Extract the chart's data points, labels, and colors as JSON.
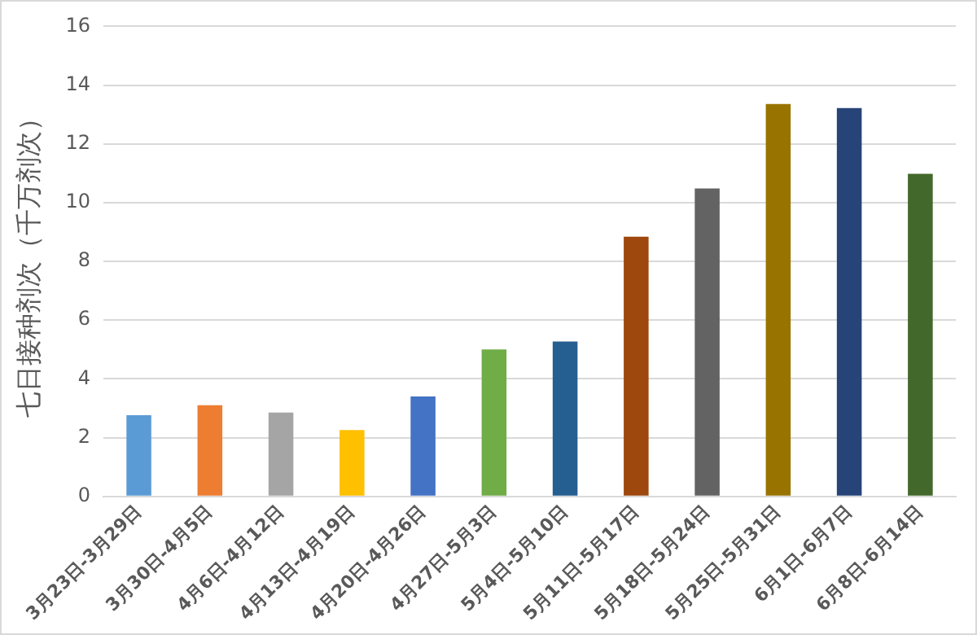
{
  "chart_data": {
    "type": "bar",
    "ylabel": "七日接种剂次（千万剂次）",
    "categories": [
      "3月23日-3月29日",
      "3月30日-4月5日",
      "4月6日-4月12日",
      "4月13日-4月19日",
      "4月20日-4月26日",
      "4月27日-5月3日",
      "5月4日-5月10日",
      "5月11日-5月17日",
      "5月18日-5月24日",
      "5月25日-5月31日",
      "6月1日-6月7日",
      "6月8日-6月14日"
    ],
    "values": [
      2.76,
      3.1,
      2.85,
      2.26,
      3.4,
      5.0,
      5.27,
      8.84,
      10.48,
      13.36,
      13.22,
      10.98
    ],
    "colors": [
      "#5b9bd5",
      "#ed7d31",
      "#a5a5a5",
      "#ffc000",
      "#4472c4",
      "#70ad47",
      "#255e91",
      "#9e480e",
      "#636363",
      "#997300",
      "#264478",
      "#43682b"
    ],
    "ylim": [
      0,
      16
    ],
    "yticks": [
      0,
      2,
      4,
      6,
      8,
      10,
      12,
      14,
      16
    ],
    "grid": "y",
    "legend": false
  }
}
